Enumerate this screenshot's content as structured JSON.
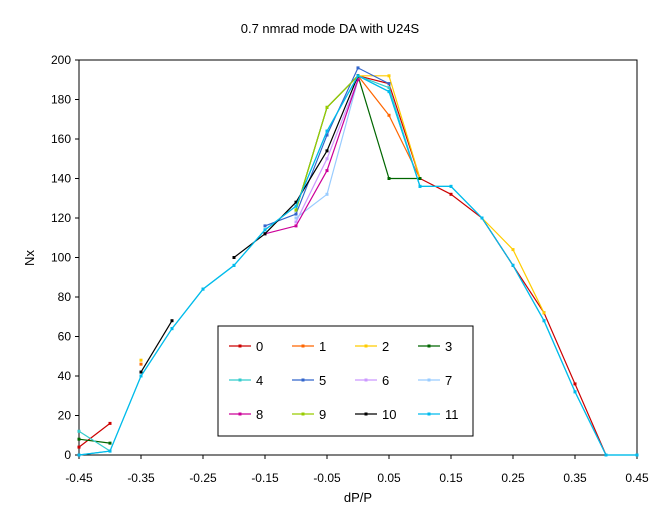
{
  "chart_data": {
    "type": "line",
    "title": "0.7 nmrad mode DA with U24S",
    "xlabel": "dP/P",
    "ylabel": "Nx",
    "xlim": [
      -0.45,
      0.45
    ],
    "ylim": [
      0,
      200
    ],
    "x_ticks": [
      "-0.45",
      "-0.35",
      "-0.25",
      "-0.15",
      "-0.05",
      "0.05",
      "0.15",
      "0.25",
      "0.35",
      "0.45"
    ],
    "y_ticks": [
      "0",
      "20",
      "40",
      "60",
      "80",
      "100",
      "120",
      "140",
      "160",
      "180",
      "200"
    ],
    "grid": false,
    "legend_position": "bottom-center",
    "x": [
      -0.45,
      -0.4,
      -0.35,
      -0.3,
      -0.25,
      -0.2,
      -0.15,
      -0.1,
      -0.05,
      0,
      0.05,
      0.1,
      0.15,
      0.2,
      0.25,
      0.3,
      0.35,
      0.4,
      0.45
    ],
    "series": [
      {
        "name": "0",
        "color": "#cc0000",
        "values": [
          4,
          16,
          null,
          null,
          null,
          null,
          null,
          null,
          null,
          192,
          188,
          140,
          132,
          120,
          96,
          72,
          36,
          0,
          null
        ]
      },
      {
        "name": "1",
        "color": "#ff6600",
        "values": [
          null,
          null,
          46,
          null,
          null,
          null,
          null,
          null,
          null,
          192,
          172,
          140,
          null,
          null,
          null,
          null,
          null,
          null,
          null
        ]
      },
      {
        "name": "2",
        "color": "#ffcc00",
        "values": [
          null,
          null,
          48,
          null,
          null,
          null,
          null,
          null,
          null,
          192,
          192,
          140,
          null,
          120,
          104,
          72,
          null,
          null,
          null
        ]
      },
      {
        "name": "3",
        "color": "#006600",
        "values": [
          8,
          6,
          null,
          null,
          null,
          null,
          null,
          124,
          176,
          192,
          140,
          140,
          null,
          null,
          null,
          null,
          null,
          null,
          null
        ]
      },
      {
        "name": "4",
        "color": "#33cccc",
        "values": [
          12,
          2,
          null,
          null,
          null,
          null,
          null,
          null,
          null,
          192,
          186,
          136,
          null,
          null,
          null,
          null,
          null,
          null,
          null
        ]
      },
      {
        "name": "5",
        "color": "#3366cc",
        "values": [
          null,
          null,
          null,
          null,
          null,
          null,
          116,
          122,
          162,
          196,
          188,
          null,
          null,
          null,
          null,
          null,
          null,
          null,
          null
        ]
      },
      {
        "name": "6",
        "color": "#cc99ff",
        "values": [
          null,
          null,
          null,
          null,
          null,
          null,
          null,
          118,
          150,
          190,
          null,
          null,
          null,
          null,
          null,
          null,
          null,
          null,
          null
        ]
      },
      {
        "name": "7",
        "color": "#99ccff",
        "values": [
          null,
          null,
          null,
          null,
          null,
          null,
          null,
          120,
          132,
          190,
          null,
          null,
          null,
          null,
          null,
          null,
          null,
          null,
          null
        ]
      },
      {
        "name": "8",
        "color": "#cc0099",
        "values": [
          null,
          null,
          null,
          null,
          null,
          null,
          112,
          116,
          144,
          190,
          null,
          null,
          null,
          null,
          null,
          null,
          null,
          null,
          null
        ]
      },
      {
        "name": "9",
        "color": "#99cc00",
        "values": [
          null,
          null,
          null,
          null,
          null,
          null,
          null,
          124,
          176,
          192,
          null,
          null,
          null,
          null,
          null,
          null,
          null,
          null,
          null
        ]
      },
      {
        "name": "10",
        "color": "#000000",
        "values": [
          null,
          null,
          42,
          68,
          null,
          100,
          112,
          128,
          154,
          192,
          null,
          null,
          null,
          null,
          null,
          null,
          null,
          null,
          null
        ]
      },
      {
        "name": "11",
        "color": "#00bbee",
        "values": [
          0,
          2,
          40,
          64,
          84,
          96,
          114,
          126,
          164,
          192,
          184,
          136,
          136,
          120,
          96,
          68,
          32,
          0,
          0
        ]
      }
    ],
    "base": {
      "name": "",
      "color": "#33cccc",
      "values": [
        0,
        2,
        40,
        64,
        84,
        96,
        114,
        126,
        164,
        192,
        184,
        136,
        136,
        120,
        96,
        68,
        32,
        0,
        0
      ]
    }
  }
}
